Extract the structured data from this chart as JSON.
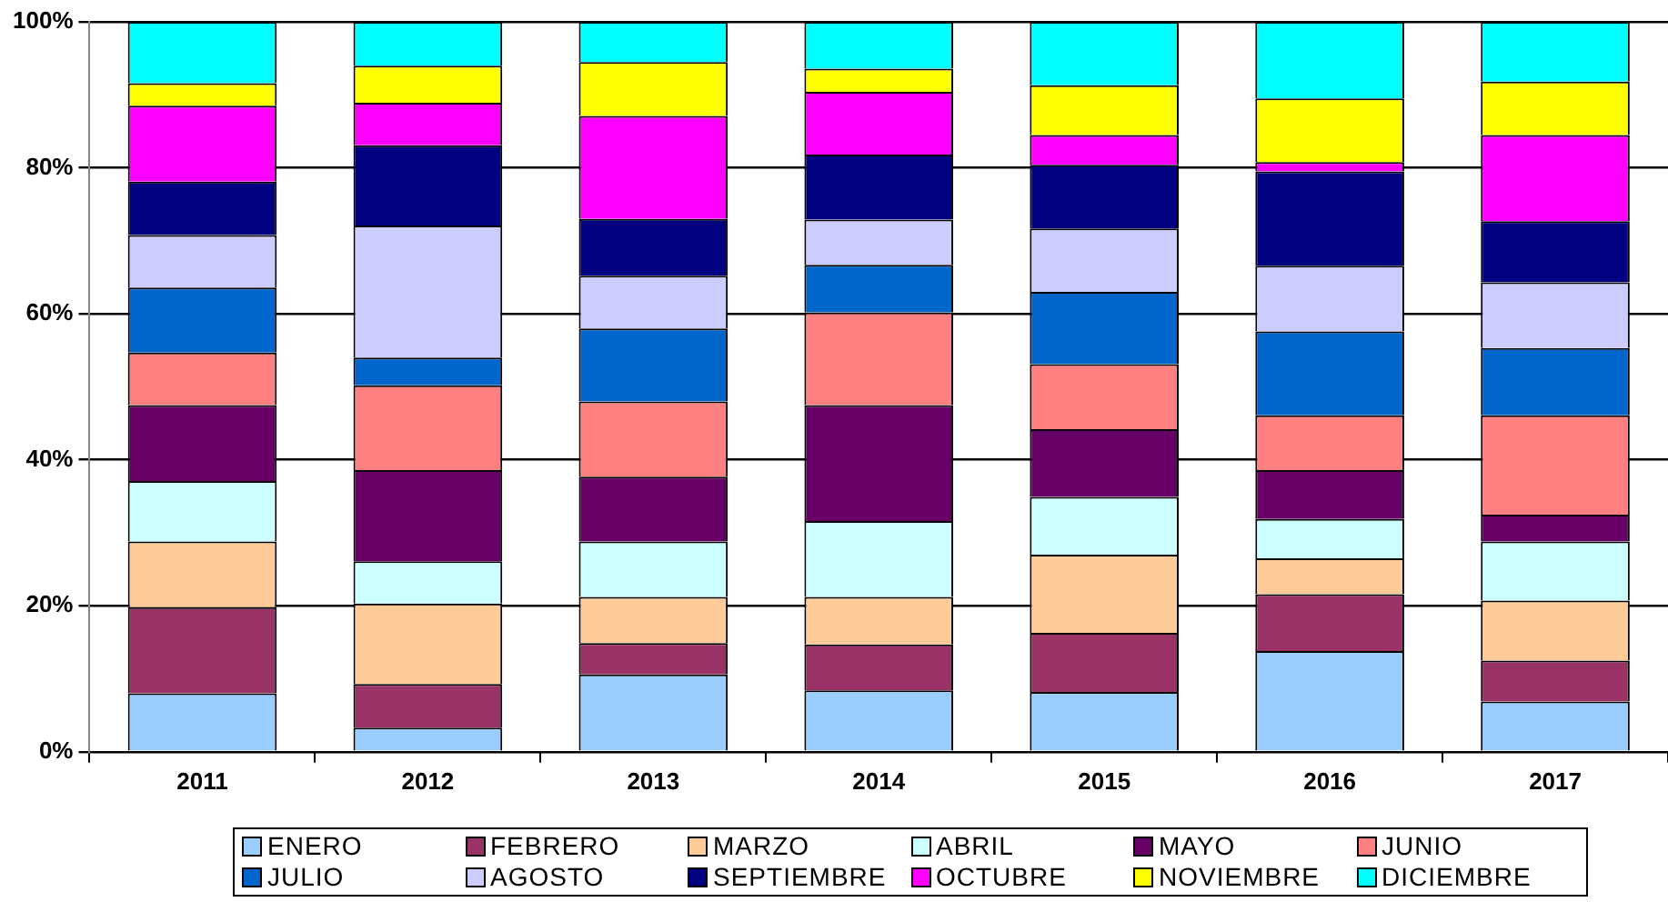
{
  "chart_data": {
    "type": "bar",
    "stacked": true,
    "categories": [
      "2011",
      "2012",
      "2013",
      "2014",
      "2015",
      "2016",
      "2017"
    ],
    "ylim": [
      0,
      100
    ],
    "yticks": [
      {
        "value": 0,
        "label": "0%"
      },
      {
        "value": 20,
        "label": "20%"
      },
      {
        "value": 40,
        "label": "40%"
      },
      {
        "value": 60,
        "label": "60%"
      },
      {
        "value": 80,
        "label": "80%"
      },
      {
        "value": 100,
        "label": "100%"
      }
    ],
    "grid": "y",
    "legend": "bottom",
    "series": [
      {
        "name": "ENERO",
        "color": "#99ccff",
        "values": [
          8,
          3.3,
          10.6,
          8.4,
          8.2,
          13.8,
          6.9
        ]
      },
      {
        "name": "FEBRERO",
        "color": "#993366",
        "values": [
          11.8,
          6,
          4.3,
          6.3,
          8.1,
          7.8,
          5.6
        ]
      },
      {
        "name": "MARZO",
        "color": "#ffcc99",
        "values": [
          9,
          11,
          6.3,
          6.5,
          10.7,
          4.9,
          8.2
        ]
      },
      {
        "name": "ABRIL",
        "color": "#ccffff",
        "values": [
          8.3,
          5.8,
          7.6,
          10.4,
          7.9,
          5.4,
          8.1
        ]
      },
      {
        "name": "MAYO",
        "color": "#660066",
        "values": [
          10.4,
          12.5,
          8.9,
          15.9,
          9.3,
          6.7,
          3.7
        ]
      },
      {
        "name": "JUNIO",
        "color": "#ff8080",
        "values": [
          7.2,
          11.6,
          10.3,
          12.7,
          8.9,
          7.5,
          13.6
        ]
      },
      {
        "name": "JULIO",
        "color": "#0066cc",
        "values": [
          8.9,
          3.8,
          10,
          6.5,
          9.9,
          11.5,
          9.2
        ]
      },
      {
        "name": "AGOSTO",
        "color": "#ccccff",
        "values": [
          7.2,
          18.1,
          7.2,
          6.2,
          8.7,
          9,
          9
        ]
      },
      {
        "name": "SEPTIEMBRE",
        "color": "#000080",
        "values": [
          7.3,
          11,
          7.8,
          8.9,
          8.7,
          12.9,
          8.4
        ]
      },
      {
        "name": "OCTUBRE",
        "color": "#ff00ff",
        "values": [
          10.4,
          5.8,
          14.1,
          8.6,
          4.1,
          1.3,
          11.8
        ]
      },
      {
        "name": "NOVIEMBRE",
        "color": "#ffff00",
        "values": [
          3.1,
          5.1,
          7.4,
          3.2,
          6.8,
          8.7,
          7.3
        ]
      },
      {
        "name": "DICIEMBRE",
        "color": "#00ffff",
        "values": [
          8.4,
          6,
          5.5,
          6.4,
          8.7,
          10.5,
          8.2
        ]
      }
    ]
  }
}
